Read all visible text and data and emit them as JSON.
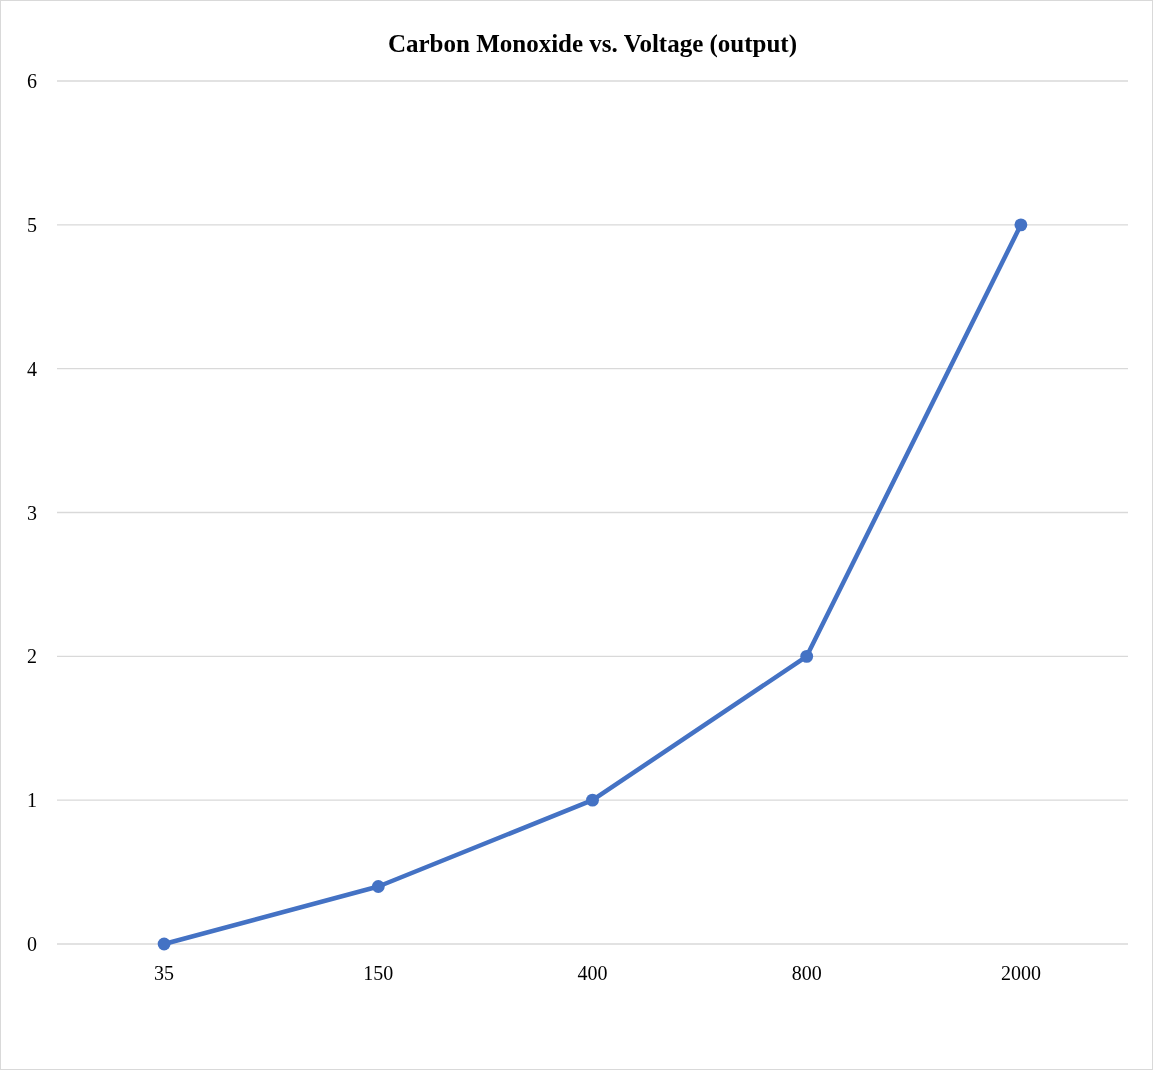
{
  "chart_data": {
    "type": "line",
    "title": "Carbon Monoxide vs. Voltage (output)",
    "categories": [
      "35",
      "150",
      "400",
      "800",
      "2000"
    ],
    "series": [
      {
        "color": "#4472c4",
        "values": [
          0,
          0.4,
          1,
          2,
          5
        ]
      }
    ],
    "ylim": [
      0,
      6
    ],
    "yticks": [
      0,
      1,
      2,
      3,
      4,
      5,
      6
    ],
    "grid": "y",
    "marker": "circle"
  }
}
